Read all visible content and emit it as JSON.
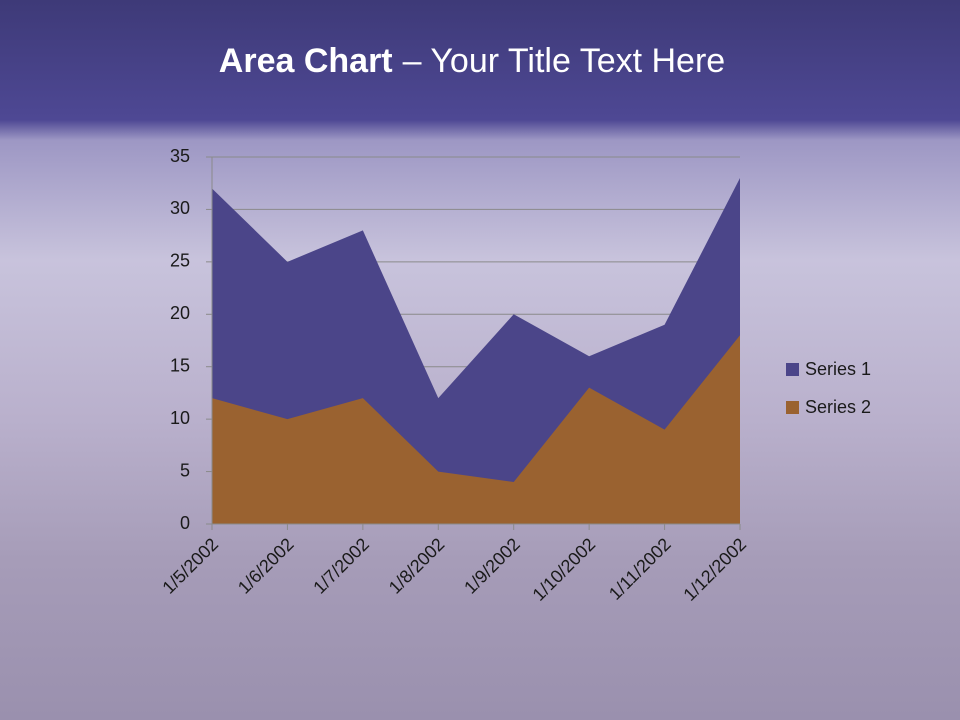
{
  "chart_data": {
    "type": "area",
    "title_emphasis": "Area Chart",
    "title": "– Your Title Text Here",
    "categories": [
      "1/5/2002",
      "1/6/2002",
      "1/7/2002",
      "1/8/2002",
      "1/9/2002",
      "1/10/2002",
      "1/11/2002",
      "1/12/2002"
    ],
    "series": [
      {
        "name": "Series 1",
        "color": "#4b4589",
        "values": [
          32,
          25,
          28,
          12,
          20,
          16,
          19,
          33
        ]
      },
      {
        "name": "Series 2",
        "color": "#9a6230",
        "values": [
          12,
          10,
          12,
          5,
          4,
          13,
          9,
          18
        ]
      }
    ],
    "ylim": [
      0,
      35
    ],
    "yticks": [
      0,
      5,
      10,
      15,
      20,
      25,
      30,
      35
    ],
    "grid": true,
    "legend": "right"
  }
}
